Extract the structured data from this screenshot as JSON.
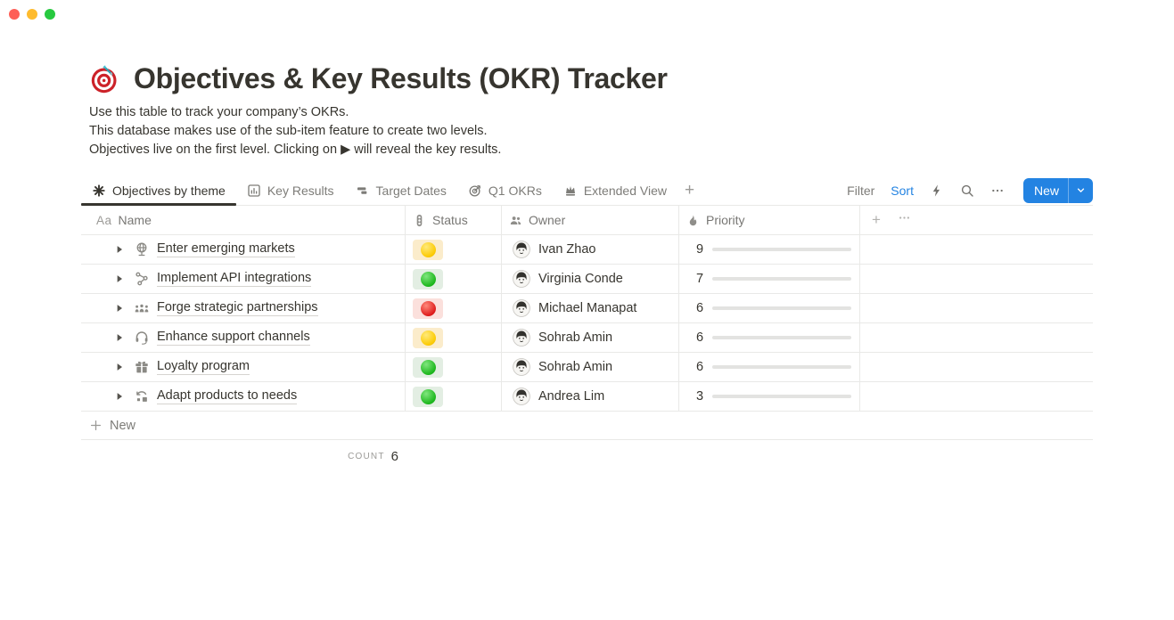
{
  "window": {
    "controls": [
      {
        "name": "close",
        "color": "#fe5f57"
      },
      {
        "name": "minimize",
        "color": "#febb2e"
      },
      {
        "name": "zoom",
        "color": "#27c93f"
      }
    ]
  },
  "page": {
    "icon": "dartboard-emoji",
    "title": "Objectives & Key Results (OKR) Tracker",
    "description": [
      "Use this table to track your company’s OKRs.",
      "This database makes use of the sub-item feature to create two levels.",
      "Objectives live on the first level. Clicking on ▶ will reveal the key results."
    ]
  },
  "views": {
    "tabs": [
      {
        "label": "Objectives by theme",
        "icon": "table-asterisk-icon",
        "active": true
      },
      {
        "label": "Key Results",
        "icon": "bar-chart-icon",
        "active": false
      },
      {
        "label": "Target Dates",
        "icon": "timeline-icon",
        "active": false
      },
      {
        "label": "Q1 OKRs",
        "icon": "target-icon",
        "active": false
      },
      {
        "label": "Extended View",
        "icon": "crown-icon",
        "active": false
      }
    ],
    "add_view_label": "+"
  },
  "toolbar": {
    "filter_label": "Filter",
    "sort_label": "Sort",
    "sort_active_color": "#2383e2",
    "icons": [
      "lightning-icon",
      "search-icon",
      "more-icon"
    ],
    "new_button_label": "New",
    "new_button_color": "#2383e2"
  },
  "table": {
    "columns": [
      {
        "label": "Name",
        "icon": "text-icon"
      },
      {
        "label": "Status",
        "icon": "traffic-light-icon"
      },
      {
        "label": "Owner",
        "icon": "people-icon"
      },
      {
        "label": "Priority",
        "icon": "flame-icon"
      }
    ],
    "add_column_label": "+",
    "rows": [
      {
        "title": "Enter emerging markets",
        "icon": "globe-icon",
        "status": "yellow",
        "owner": "Ivan Zhao",
        "priority": 9
      },
      {
        "title": "Implement API integrations",
        "icon": "workflow-icon",
        "status": "green",
        "owner": "Virginia Conde",
        "priority": 7
      },
      {
        "title": "Forge strategic partnerships",
        "icon": "team-icon",
        "status": "red",
        "owner": "Michael Manapat",
        "priority": 6
      },
      {
        "title": "Enhance support channels",
        "icon": "headset-icon",
        "status": "yellow",
        "owner": "Sohrab Amin",
        "priority": 6
      },
      {
        "title": "Loyalty program",
        "icon": "gift-icon",
        "status": "green",
        "owner": "Sohrab Amin",
        "priority": 6
      },
      {
        "title": "Adapt products to needs",
        "icon": "sync-icon",
        "status": "green",
        "owner": "Andrea Lim",
        "priority": 3
      }
    ],
    "priority_max": 10,
    "priority_bar_color": "#4d8a62",
    "status_colors": {
      "yellow": {
        "pill": "#fbeccb",
        "dot": "#fcca00"
      },
      "green": {
        "pill": "#e3eee3",
        "dot": "#1fb81f"
      },
      "red": {
        "pill": "#fbe0dc",
        "dot": "#e01f1f"
      }
    },
    "new_row_label": "New",
    "footer": {
      "calc_label": "COUNT",
      "calc_value": "6"
    }
  }
}
